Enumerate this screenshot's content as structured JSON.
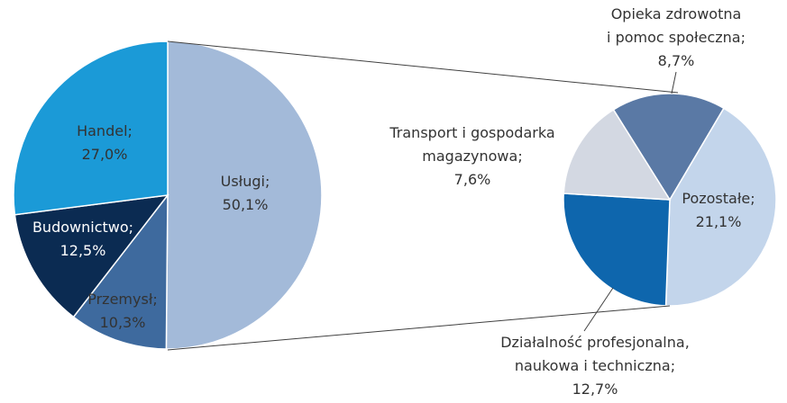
{
  "chart_data": [
    {
      "type": "pie",
      "categories": [
        [
          "Usługi;"
        ],
        [
          "Przemysł;"
        ],
        [
          "Budownictwo;"
        ],
        [
          "Handel;"
        ]
      ],
      "values": [
        50.1,
        10.3,
        12.5,
        27.0
      ],
      "value_labels": [
        "50,1%",
        "10,3%",
        "12,5%",
        "27,0%"
      ],
      "colors": [
        "#a3bad9",
        "#3e6a9e",
        "#0b2b52",
        "#1b9ad7"
      ]
    },
    {
      "type": "pie",
      "categories": [
        [
          "Opieka zdrowotna",
          "i pomoc społeczna;"
        ],
        [
          "Pozostałe;"
        ],
        [
          "Działalność profesjonalna,",
          "naukowa i techniczna;"
        ],
        [
          "Transport i gospodarka",
          "magazynowa;"
        ]
      ],
      "values": [
        8.7,
        21.1,
        12.7,
        7.6
      ],
      "value_labels": [
        "8,7%",
        "21,1%",
        "12,7%",
        "7,6%"
      ],
      "colors": [
        "#5a79a5",
        "#c3d5eb",
        "#0e66ad",
        "#d3d8e2"
      ]
    }
  ]
}
